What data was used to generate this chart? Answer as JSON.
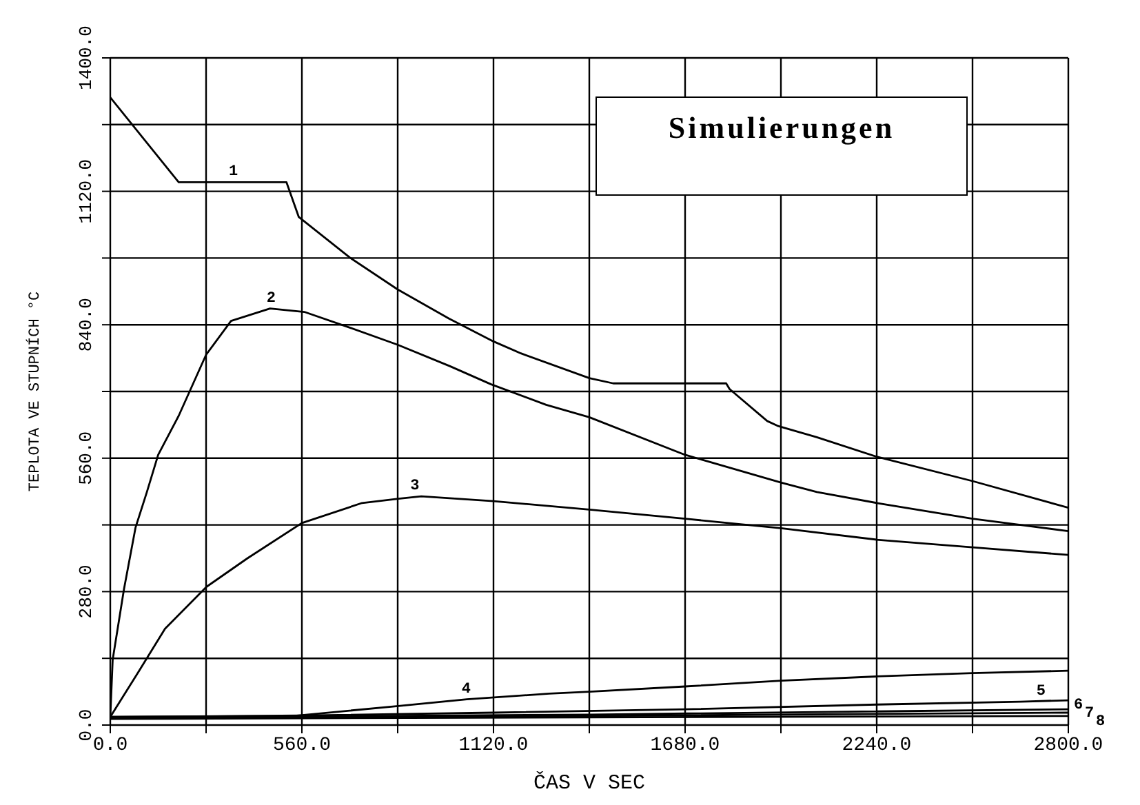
{
  "chart_data": {
    "type": "line",
    "title": "Simulierungen",
    "xlabel": "ČAS V SEC",
    "ylabel": "TEPLOTA VE STUPNÍCH °C",
    "xlim": [
      0,
      2800
    ],
    "xticks": [
      {
        "value": 0,
        "label": "0.0"
      },
      {
        "value": 280,
        "label": null
      },
      {
        "value": 560,
        "label": "560.0"
      },
      {
        "value": 840,
        "label": null
      },
      {
        "value": 1120,
        "label": "1120.0"
      },
      {
        "value": 1400,
        "label": null
      },
      {
        "value": 1680,
        "label": "1680.0"
      },
      {
        "value": 1960,
        "label": null
      },
      {
        "value": 2240,
        "label": "2240.0"
      },
      {
        "value": 2520,
        "label": null
      },
      {
        "value": 2800,
        "label": "2800.0"
      }
    ],
    "ylim": [
      0,
      1400
    ],
    "yticks": [
      {
        "value": 0,
        "label": "0.0"
      },
      {
        "value": 140,
        "label": null
      },
      {
        "value": 280,
        "label": "280.0"
      },
      {
        "value": 420,
        "label": null
      },
      {
        "value": 560,
        "label": "560.0"
      },
      {
        "value": 700,
        "label": null
      },
      {
        "value": 840,
        "label": "840.0"
      },
      {
        "value": 980,
        "label": null
      },
      {
        "value": 1120,
        "label": "1120.0"
      },
      {
        "value": 1260,
        "label": null
      },
      {
        "value": 1400,
        "label": "1400.0"
      }
    ],
    "grid": true,
    "legend": false,
    "marker": "none",
    "line_style": "solid",
    "series": [
      {
        "color": "#000000",
        "x": [
          0,
          200,
          515,
          551,
          700,
          840,
          990,
          1120,
          1200,
          1400,
          1470,
          1800,
          1810,
          1920,
          1950,
          2065,
          2240,
          2520,
          2800
        ],
        "values": [
          1317,
          1139,
          1139,
          1066,
          981,
          914,
          853,
          805,
          780,
          728,
          717,
          717,
          705,
          638,
          628,
          604,
          563,
          512,
          456
        ]
      },
      {
        "color": "#000000",
        "x": [
          0,
          7,
          40,
          74,
          107,
          140,
          200,
          280,
          353,
          467,
          567,
          700,
          840,
          993,
          1113,
          1274,
          1400,
          1680,
          1960,
          2065,
          2240,
          2520,
          2800
        ],
        "values": [
          17,
          137,
          285,
          415,
          489,
          567,
          649,
          777,
          848,
          874,
          867,
          834,
          798,
          753,
          715,
          672,
          646,
          567,
          509,
          489,
          466,
          433,
          407
        ]
      },
      {
        "color": "#000000",
        "x": [
          0,
          80,
          160,
          281,
          401,
          560,
          736,
          842,
          909,
          1120,
          1400,
          1680,
          1960,
          2240,
          2520,
          2800
        ],
        "values": [
          17,
          109,
          202,
          290,
          350,
          424,
          466,
          475,
          480,
          470,
          452,
          433,
          413,
          389,
          373,
          357
        ]
      },
      {
        "color": "#000000",
        "x": [
          0,
          534,
          842,
          1042,
          1283,
          1400,
          1680,
          1960,
          2240,
          2520,
          2800
        ],
        "values": [
          17,
          19,
          40,
          54,
          66,
          70,
          81,
          93,
          102,
          109,
          114
        ]
      },
      {
        "color": "#000000",
        "x": [
          0,
          560,
          1120,
          1680,
          2240,
          2660,
          2800
        ],
        "values": [
          17,
          20,
          26,
          33,
          43,
          49,
          52
        ]
      },
      {
        "color": "#000000",
        "x": [
          0,
          1400,
          2800
        ],
        "values": [
          15,
          22,
          33
        ]
      },
      {
        "color": "#000000",
        "x": [
          0,
          1400,
          2800
        ],
        "values": [
          14,
          19,
          26
        ]
      },
      {
        "color": "#000000",
        "x": [
          0,
          1400,
          2800
        ],
        "values": [
          13,
          16,
          19
        ]
      }
    ],
    "annotations": [
      {
        "text": "1",
        "x": 360,
        "y": 1139
      },
      {
        "text": "2",
        "x": 470,
        "y": 874
      },
      {
        "text": "3",
        "x": 890,
        "y": 480
      },
      {
        "text": "4",
        "x": 1040,
        "y": 54
      },
      {
        "text": "5",
        "x": 2720,
        "y": 49
      },
      {
        "text": "6",
        "x": 2800,
        "y": 46
      },
      {
        "text": "7",
        "x": 2800,
        "y": 29
      },
      {
        "text": "8",
        "x": 2800,
        "y": 12
      }
    ]
  }
}
